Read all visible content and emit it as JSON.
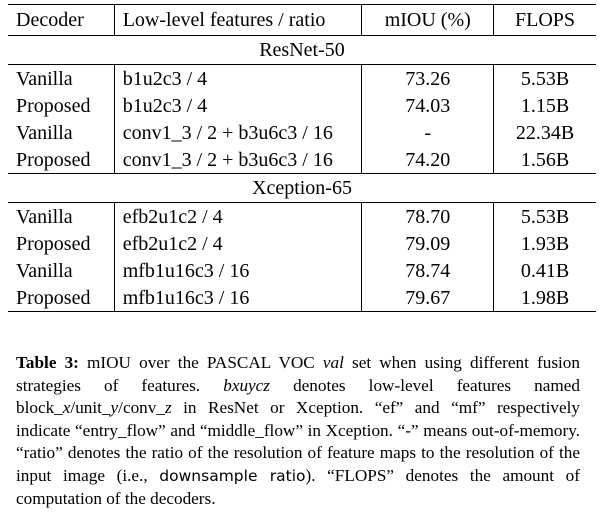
{
  "table": {
    "headers": {
      "decoder": "Decoder",
      "features": "Low-level features / ratio",
      "miou": "mIOU (%)",
      "flops": "FLOPS"
    },
    "sections": [
      {
        "title": "ResNet-50",
        "rows": [
          {
            "decoder": "Vanilla",
            "features": "b1u2c3 / 4",
            "miou": "73.26",
            "flops": "5.53B"
          },
          {
            "decoder": "Proposed",
            "features": "b1u2c3 / 4",
            "miou": "74.03",
            "flops": "1.15B"
          },
          {
            "decoder": "Vanilla",
            "features": "conv1_3 / 2 + b3u6c3 / 16",
            "miou": "-",
            "flops": "22.34B"
          },
          {
            "decoder": "Proposed",
            "features": "conv1_3 / 2 + b3u6c3 / 16",
            "miou": "74.20",
            "flops": "1.56B"
          }
        ]
      },
      {
        "title": "Xception-65",
        "rows": [
          {
            "decoder": "Vanilla",
            "features": "efb2u1c2 / 4",
            "miou": "78.70",
            "flops": "5.53B"
          },
          {
            "decoder": "Proposed",
            "features": "efb2u1c2 / 4",
            "miou": "79.09",
            "flops": "1.93B"
          },
          {
            "decoder": "Vanilla",
            "features": "mfb1u16c3 / 16",
            "miou": "78.74",
            "flops": "0.41B"
          },
          {
            "decoder": "Proposed",
            "features": "mfb1u16c3 / 16",
            "miou": "79.67",
            "flops": "1.98B"
          }
        ]
      }
    ]
  },
  "caption": {
    "label": "Table 3:",
    "t1": " mIOU over the PASCAL VOC ",
    "val": "val",
    "t2": " set when using different fusion strategies of features. ",
    "code": "bxuycz",
    "t3": " denotes low-level features named block_",
    "x": "x",
    "t4": "/unit_",
    "y": "y",
    "t5": "/conv_",
    "z": "z",
    "t6": " in ResNet or Xception. “ef” and “mf” respectively indicate “entry_flow” and “middle_flow” in Xception. “-” means out-of-memory. “ratio” denotes the ratio of the resolution of feature maps to the resolution of the input image (i.e., ",
    "ratio": "downsample ratio",
    "t7": "). “FLOPS” denotes the amount of computation of the decoders."
  }
}
